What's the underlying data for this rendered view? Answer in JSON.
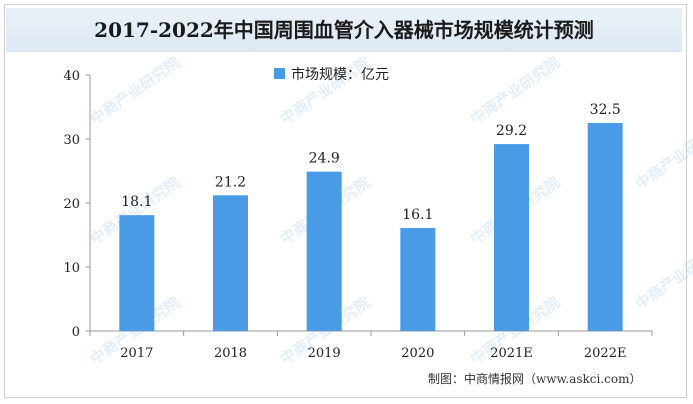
{
  "chart_data": {
    "type": "bar",
    "title": "2017-2022年中国周围血管介入器械市场规模统计预测",
    "categories": [
      "2017",
      "2018",
      "2019",
      "2020",
      "2021E",
      "2022E"
    ],
    "series": [
      {
        "name": "市场规模：亿元",
        "values": [
          18.1,
          21.2,
          24.9,
          16.1,
          29.2,
          32.5
        ]
      }
    ],
    "ylim": [
      0,
      40
    ],
    "yticks": [
      0,
      10,
      20,
      30,
      40
    ],
    "grid": false,
    "legend": "top-center",
    "bar_color": "#4a9be6"
  },
  "footer": "制图：中商情报网（www.askci.com）",
  "watermark": "中商产业研究院"
}
